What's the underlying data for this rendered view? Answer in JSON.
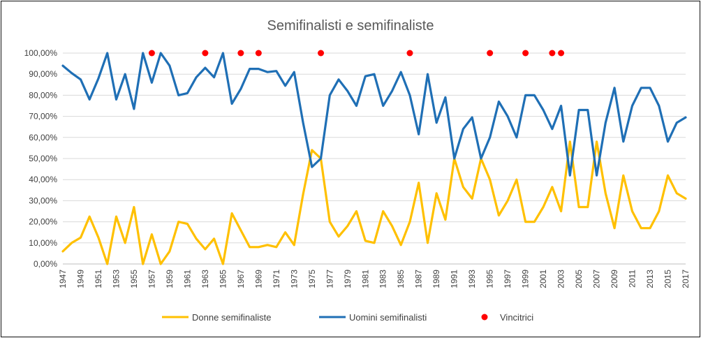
{
  "chart_data": {
    "type": "line",
    "title": "Semifinalisti e semifinaliste",
    "ylim": [
      0,
      100
    ],
    "y_ticks": [
      "0,00%",
      "10,00%",
      "20,00%",
      "30,00%",
      "40,00%",
      "50,00%",
      "60,00%",
      "70,00%",
      "80,00%",
      "90,00%",
      "100,00%"
    ],
    "x_tick_labels": [
      "1947",
      "1949",
      "1951",
      "1953",
      "1955",
      "1957",
      "1959",
      "1961",
      "1963",
      "1965",
      "1967",
      "1969",
      "1971",
      "1973",
      "1975",
      "1977",
      "1979",
      "1981",
      "1983",
      "1985",
      "1987",
      "1989",
      "1991",
      "1993",
      "1995",
      "1997",
      "1999",
      "2001",
      "2003",
      "2005",
      "2007",
      "2009",
      "2011",
      "2013",
      "2015",
      "2017"
    ],
    "x": [
      1947,
      1948,
      1949,
      1950,
      1951,
      1952,
      1953,
      1954,
      1955,
      1956,
      1957,
      1958,
      1959,
      1960,
      1961,
      1962,
      1963,
      1964,
      1965,
      1966,
      1967,
      1968,
      1969,
      1970,
      1971,
      1972,
      1973,
      1974,
      1975,
      1976,
      1977,
      1978,
      1979,
      1980,
      1981,
      1982,
      1983,
      1984,
      1985,
      1986,
      1987,
      1988,
      1989,
      1990,
      1991,
      1992,
      1993,
      1994,
      1995,
      1996,
      1997,
      1998,
      1999,
      2000,
      2001,
      2002,
      2003,
      2004,
      2005,
      2006,
      2007,
      2008,
      2009,
      2010,
      2011,
      2012,
      2013,
      2014,
      2015,
      2016,
      2017
    ],
    "series": [
      {
        "name": "Donne semifinaliste",
        "color": "#FFC000",
        "values": [
          6,
          10,
          12.5,
          22.5,
          12.5,
          0,
          22.5,
          10,
          27,
          0,
          14,
          0,
          6,
          20,
          19,
          12,
          7,
          12,
          0,
          24,
          16,
          8,
          8,
          9,
          8,
          15,
          9,
          33,
          54,
          50,
          20,
          13,
          18,
          25,
          11,
          10,
          25,
          18,
          9,
          20,
          38.5,
          10,
          33.5,
          21,
          50,
          36.5,
          31,
          50,
          40,
          23,
          30,
          40,
          20,
          20,
          27,
          36.5,
          25,
          58,
          27,
          27,
          58,
          33.5,
          17,
          42,
          25,
          17,
          17,
          25,
          42,
          33.5,
          31
        ]
      },
      {
        "name": "Uomini semifinalisti",
        "color": "#1F6FB5",
        "values": [
          94,
          90.5,
          87.5,
          78,
          88,
          100,
          78,
          90,
          73.5,
          100,
          86,
          100,
          94,
          80,
          81,
          88.5,
          93,
          88.5,
          100,
          76,
          83,
          92.5,
          92.5,
          91,
          91.5,
          84.5,
          91,
          67,
          46,
          50,
          80,
          87.5,
          82,
          75,
          89,
          90,
          75,
          82,
          91,
          80,
          61.5,
          90,
          67,
          79,
          50,
          64,
          69.5,
          50,
          60,
          77,
          70,
          60,
          80,
          80,
          73,
          64,
          75,
          42,
          73,
          73,
          42,
          67,
          83.5,
          58,
          75,
          83.5,
          83.5,
          75,
          58,
          67,
          69.5
        ]
      },
      {
        "name": "Vincitrici",
        "color": "#FF0000",
        "type": "scatter",
        "x": [
          1957,
          1963,
          1967,
          1969,
          1976,
          1986,
          1995,
          1999,
          2002,
          2003
        ],
        "values": [
          100,
          100,
          100,
          100,
          100,
          100,
          100,
          100,
          100,
          100
        ]
      }
    ],
    "legend": {
      "position": "bottom",
      "entries": [
        "Donne semifinaliste",
        "Uomini semifinalisti",
        "Vincitrici"
      ]
    },
    "grid": true
  }
}
